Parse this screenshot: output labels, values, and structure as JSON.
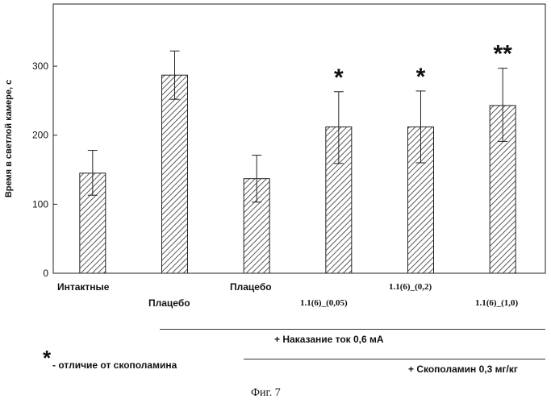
{
  "chart_data": {
    "type": "bar",
    "ylabel": "Время в светлой камере, с",
    "ylim": [
      0,
      390
    ],
    "yticks": [
      0,
      100,
      200,
      300
    ],
    "categories": [
      "Интактные",
      "Плацебо",
      "Плацебо",
      "1.1(6)_(0,05)",
      "1.1(6)_(0,2)",
      "1.1(6)_(1,0)"
    ],
    "values": [
      145,
      287,
      137,
      212,
      212,
      243
    ],
    "error_high": [
      178,
      322,
      171,
      263,
      264,
      297
    ],
    "error_low": [
      113,
      252,
      103,
      159,
      160,
      191
    ],
    "significance": [
      "",
      "",
      "",
      "*",
      "*",
      "**"
    ],
    "grid": false
  },
  "annotations": {
    "punishment": "+ Наказание ток 0,6 мА",
    "scopolamine": "+ Скополамин 0,3 мг/кг",
    "legend_star": "*",
    "legend_text": "- отличие от скополамина"
  },
  "caption": "Фиг. 7"
}
